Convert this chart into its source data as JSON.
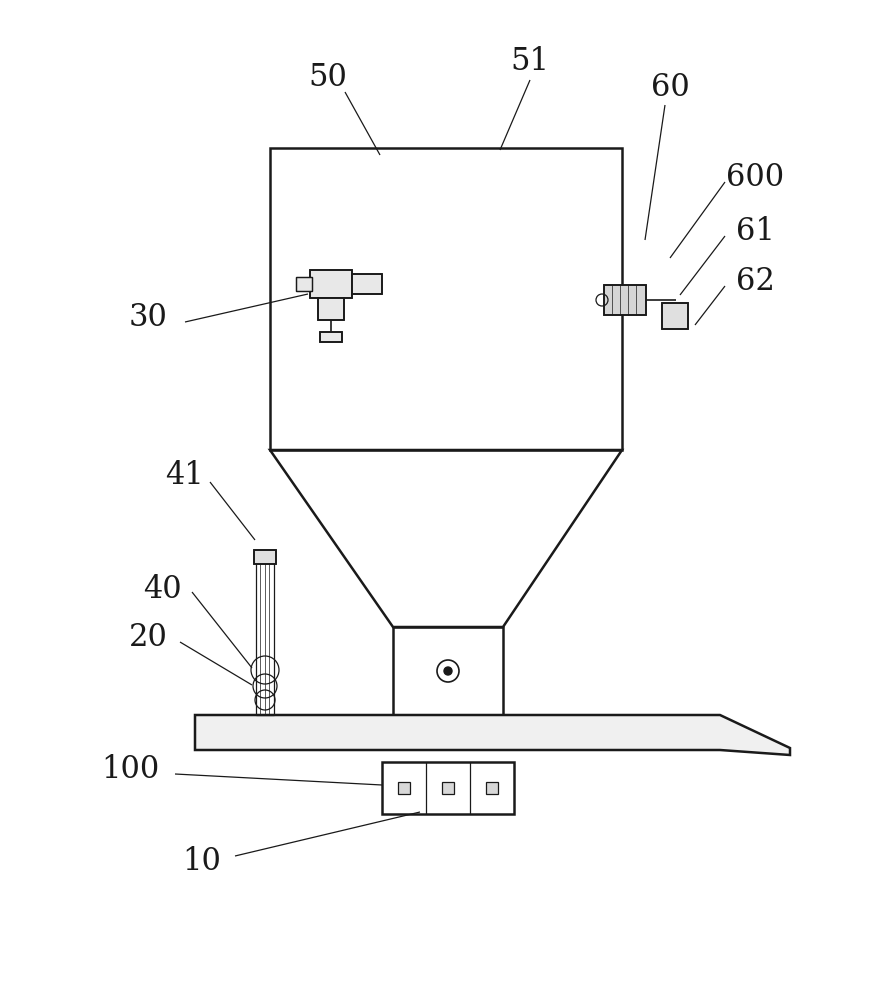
{
  "background_color": "#ffffff",
  "line_color": "#1a1a1a",
  "fig_width": 8.93,
  "fig_height": 10.0,
  "label_fontsize": 22,
  "label_fontsize_sm": 18
}
